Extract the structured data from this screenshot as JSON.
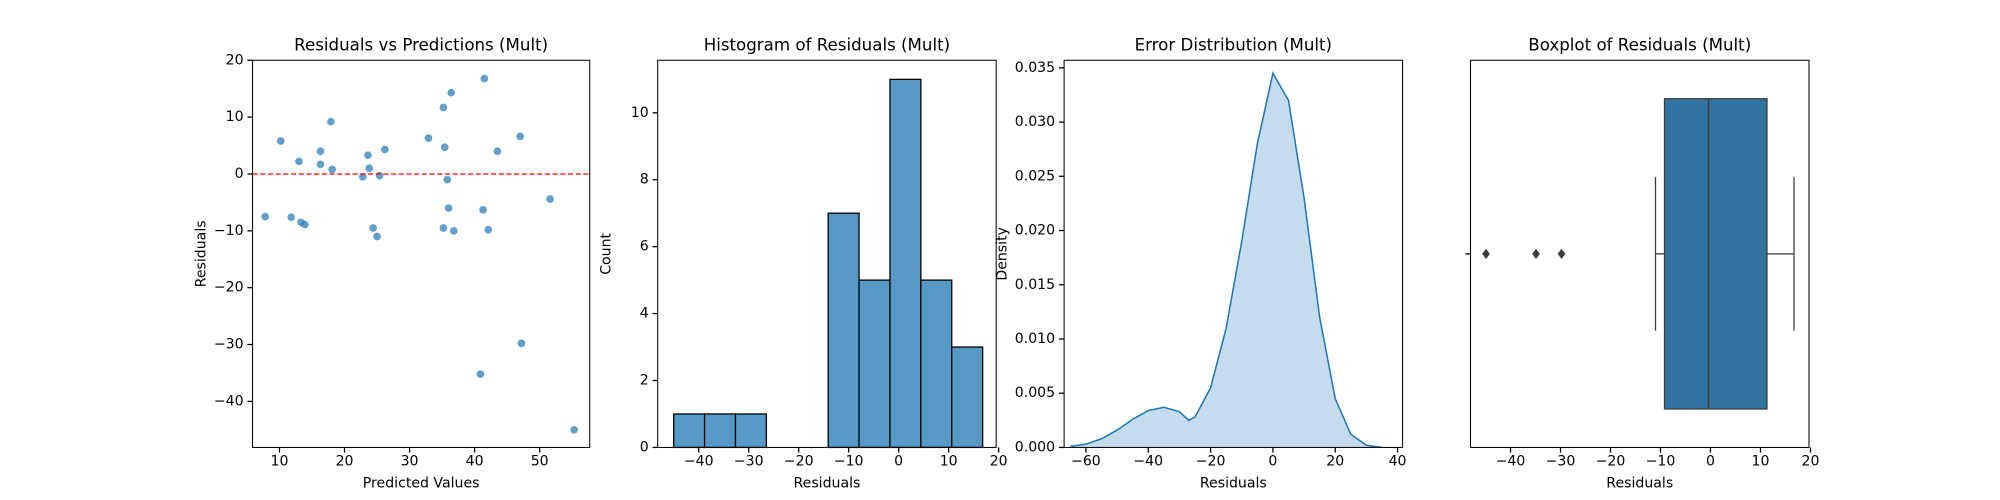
{
  "chart_data": [
    {
      "type": "scatter",
      "title": "Residuals vs Predictions (Mult)",
      "xlabel": "Predicted Values",
      "ylabel": "Residuals",
      "color": "#1f77b4",
      "x": [
        7.8,
        10.2,
        11.8,
        13.0,
        13.3,
        13.9,
        16.3,
        16.3,
        17.9,
        18.1,
        22.8,
        23.6,
        23.8,
        24.4,
        25.0,
        25.4,
        26.2,
        32.9,
        35.2,
        35.2,
        35.4,
        35.8,
        36.0,
        36.4,
        36.8,
        40.9,
        41.3,
        41.5,
        42.1,
        43.5,
        47.0,
        47.2,
        51.6,
        55.3
      ],
      "values": [
        -7.5,
        5.8,
        -7.6,
        2.2,
        -8.5,
        -8.9,
        4.0,
        1.7,
        9.2,
        0.8,
        -0.5,
        3.3,
        1.0,
        -9.5,
        -11.0,
        -0.3,
        4.3,
        6.3,
        11.7,
        -9.5,
        4.7,
        -1.0,
        -6.0,
        14.3,
        -10.0,
        -35.2,
        -6.3,
        16.8,
        -9.8,
        4.0,
        6.6,
        -29.8,
        -4.4,
        -45.0
      ],
      "hline": 0,
      "hline_color": "red",
      "xlim": [
        5.86,
        57.7
      ],
      "ylim": [
        -48.1,
        20
      ],
      "xticks": [
        10,
        20,
        30,
        40,
        50
      ],
      "yticks": [
        {
          "value": -40,
          "label": "−40"
        },
        {
          "value": -30,
          "label": "−30"
        },
        {
          "value": -20,
          "label": "−20"
        },
        {
          "value": -10,
          "label": "−10"
        },
        0,
        10,
        20
      ]
    },
    {
      "type": "histogram",
      "title": "Histogram of Residuals (Mult)",
      "xlabel": "Residuals",
      "ylabel": "Count",
      "color": "#5799c6",
      "edgecolor": "#000000",
      "bins": [
        -45,
        -38.82,
        -32.64,
        -26.46,
        -20.28,
        -14.1,
        -7.92,
        -1.74,
        4.44,
        10.62,
        16.8
      ],
      "values": [
        1,
        1,
        1,
        0,
        0,
        7,
        5,
        11,
        5,
        3
      ],
      "xlim": [
        -48.2,
        19.5
      ],
      "ylim": [
        0,
        11.57
      ],
      "xticks": [
        {
          "value": -40,
          "label": "−40"
        },
        {
          "value": -30,
          "label": "−30"
        },
        {
          "value": -20,
          "label": "−20"
        },
        {
          "value": -10,
          "label": "−10"
        },
        0,
        10,
        20
      ],
      "yticks": [
        0,
        2,
        4,
        6,
        8,
        10
      ]
    },
    {
      "type": "area",
      "title": "Error Distribution (Mult)",
      "xlabel": "Residuals",
      "ylabel": "Density",
      "color": "#1f77b4",
      "fill": "#c5dcee",
      "x": [
        -65,
        -60,
        -55,
        -50,
        -45,
        -40,
        -35,
        -30,
        -27,
        -25,
        -20,
        -15,
        -10,
        -5,
        0,
        5,
        10,
        15,
        20,
        25,
        30,
        35
      ],
      "values": [
        0.0001,
        0.0003,
        0.0008,
        0.0016,
        0.0026,
        0.0034,
        0.0037,
        0.0033,
        0.0025,
        0.0028,
        0.0055,
        0.011,
        0.019,
        0.028,
        0.0345,
        0.032,
        0.023,
        0.012,
        0.0045,
        0.0012,
        0.0002,
        0.0
      ],
      "xlim": [
        -67,
        41.6
      ],
      "ylim": [
        0,
        0.0357
      ],
      "xticks": [
        {
          "value": -60,
          "label": "−60"
        },
        {
          "value": -40,
          "label": "−40"
        },
        {
          "value": -20,
          "label": "−20"
        },
        0,
        20,
        40
      ],
      "yticks": [
        {
          "value": 0,
          "label": "0.000"
        },
        0.005,
        {
          "value": 0.01,
          "label": "0.010"
        },
        0.015,
        {
          "value": 0.02,
          "label": "0.020"
        },
        0.025,
        {
          "value": 0.03,
          "label": "0.030"
        },
        0.035
      ]
    },
    {
      "type": "box",
      "title": "Boxplot of Residuals (Mult)",
      "xlabel": "Residuals",
      "color": "#3274a1",
      "whisker_low": -11.0,
      "q1": -9.2,
      "median": -0.4,
      "q3": 11.3,
      "whisker_high": 16.7,
      "outliers": [
        -44.9,
        -34.9,
        -29.8
      ],
      "xlim": [
        -48,
        19.7
      ],
      "xticks": [
        {
          "value": -40,
          "label": "−40"
        },
        {
          "value": -30,
          "label": "−30"
        },
        {
          "value": -20,
          "label": "−20"
        },
        {
          "value": -10,
          "label": "−10"
        },
        0,
        10,
        20
      ]
    }
  ]
}
